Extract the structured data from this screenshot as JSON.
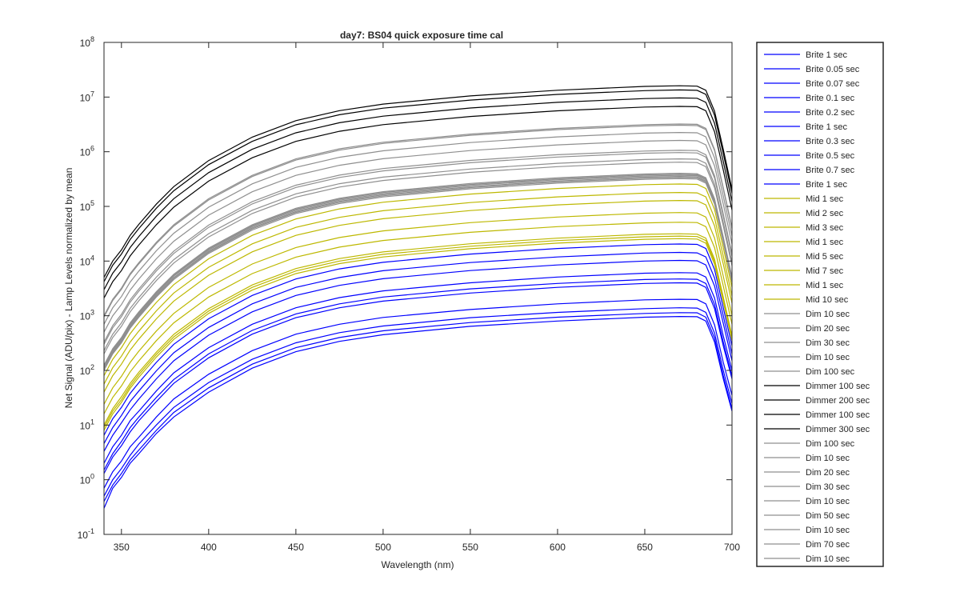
{
  "chart_data": {
    "type": "line",
    "title": "day7: BS04  quick exposure time cal",
    "xlabel": "Wavelength (nm)",
    "ylabel": "Net Signal (ADU/pix) - Lamp Levels normalized by mean",
    "xlim": [
      340,
      700
    ],
    "ylim": [
      0.1,
      100000000
    ],
    "yscale": "log",
    "xticks": [
      350,
      400,
      450,
      500,
      550,
      600,
      650,
      700
    ],
    "yticks": [
      {
        "value": 0.1,
        "base": "10",
        "exp": "-1"
      },
      {
        "value": 1,
        "base": "10",
        "exp": "0"
      },
      {
        "value": 10,
        "base": "10",
        "exp": "1"
      },
      {
        "value": 100,
        "base": "10",
        "exp": "2"
      },
      {
        "value": 1000,
        "base": "10",
        "exp": "3"
      },
      {
        "value": 10000,
        "base": "10",
        "exp": "4"
      },
      {
        "value": 100000,
        "base": "10",
        "exp": "5"
      },
      {
        "value": 1000000,
        "base": "10",
        "exp": "6"
      },
      {
        "value": 10000000,
        "base": "10",
        "exp": "7"
      },
      {
        "value": 100000000,
        "base": "10",
        "exp": "8"
      }
    ],
    "grid": false,
    "legend_position": "outside-right",
    "x": [
      340,
      345,
      350,
      355,
      360,
      370,
      380,
      400,
      425,
      450,
      475,
      500,
      550,
      600,
      650,
      670,
      680,
      685,
      690,
      695,
      700
    ],
    "colors": {
      "Brite": "#0000ff",
      "Mid": "#bdb800",
      "Dim": "#8f8f8f",
      "Dimmer": "#000000"
    },
    "series": [
      {
        "name": "Brite 1 sec",
        "group": "Brite",
        "values": [
          0.3,
          0.7,
          1.1,
          2,
          3,
          7,
          14,
          40,
          110,
          220,
          340,
          450,
          640,
          800,
          940,
          970,
          960,
          800,
          330,
          70,
          18
        ]
      },
      {
        "name": "Brite 0.05 sec",
        "group": "Brite",
        "values": [
          0.4,
          0.8,
          1.3,
          2.3,
          3.5,
          8,
          17,
          48,
          130,
          260,
          400,
          530,
          750,
          940,
          1100,
          1140,
          1130,
          940,
          390,
          80,
          20
        ]
      },
      {
        "name": "Brite 0.07 sec",
        "group": "Brite",
        "values": [
          0.5,
          1,
          1.6,
          2.8,
          4.5,
          10,
          21,
          60,
          160,
          320,
          490,
          650,
          920,
          1150,
          1350,
          1400,
          1380,
          1150,
          480,
          100,
          25
        ]
      },
      {
        "name": "Brite 0.1 sec",
        "group": "Brite",
        "values": [
          0.7,
          1.4,
          2.2,
          4,
          6,
          14,
          30,
          85,
          230,
          460,
          700,
          930,
          1300,
          1650,
          1950,
          2000,
          1980,
          1650,
          680,
          140,
          35
        ]
      },
      {
        "name": "Brite 0.2 sec",
        "group": "Brite",
        "values": [
          1.3,
          2.6,
          4.2,
          7.5,
          12,
          27,
          58,
          170,
          460,
          920,
          1400,
          1850,
          2600,
          3300,
          3900,
          4000,
          3950,
          3300,
          1350,
          280,
          70
        ]
      },
      {
        "name": "Brite 1 sec",
        "group": "Brite",
        "values": [
          1.5,
          3,
          5,
          9,
          14,
          32,
          68,
          200,
          540,
          1080,
          1650,
          2200,
          3100,
          3900,
          4600,
          4700,
          4650,
          3900,
          1600,
          330,
          80
        ]
      },
      {
        "name": "Brite 0.3 sec",
        "group": "Brite",
        "values": [
          2,
          4,
          6.5,
          12,
          18,
          42,
          90,
          260,
          700,
          1400,
          2150,
          2850,
          4000,
          5100,
          6000,
          6150,
          6050,
          5100,
          2100,
          430,
          100
        ]
      },
      {
        "name": "Brite 0.5 sec",
        "group": "Brite",
        "values": [
          3.3,
          6.5,
          11,
          19,
          30,
          70,
          150,
          440,
          1180,
          2350,
          3600,
          4750,
          6700,
          8500,
          10000,
          10300,
          10100,
          8500,
          3500,
          720,
          150
        ]
      },
      {
        "name": "Brite 0.7 sec",
        "group": "Brite",
        "values": [
          4.6,
          9,
          15,
          27,
          42,
          98,
          210,
          610,
          1650,
          3300,
          5000,
          6650,
          9400,
          11900,
          14000,
          14400,
          14100,
          11900,
          4900,
          1000,
          200
        ]
      },
      {
        "name": "Brite 1 sec",
        "group": "Brite",
        "values": [
          6.5,
          13,
          21,
          38,
          60,
          140,
          300,
          880,
          2350,
          4700,
          7200,
          9500,
          13400,
          17000,
          20000,
          20500,
          20200,
          17000,
          7000,
          1400,
          280
        ]
      },
      {
        "name": "Mid 1 sec",
        "group": "Mid",
        "values": [
          8,
          16,
          26,
          47,
          75,
          175,
          370,
          1100,
          2950,
          5900,
          9000,
          11900,
          16800,
          21300,
          25000,
          25700,
          25300,
          21300,
          8800,
          1800,
          350
        ]
      },
      {
        "name": "Mid 2 sec",
        "group": "Mid",
        "values": [
          16,
          32,
          52,
          94,
          150,
          350,
          740,
          2200,
          5900,
          11800,
          18000,
          23800,
          33600,
          42600,
          50000,
          51400,
          50600,
          42600,
          17600,
          3500,
          700
        ]
      },
      {
        "name": "Mid 3 sec",
        "group": "Mid",
        "values": [
          24,
          48,
          78,
          140,
          225,
          525,
          1100,
          3300,
          8850,
          17700,
          27000,
          35700,
          50400,
          63900,
          75000,
          77100,
          75900,
          63900,
          26400,
          5300,
          1000
        ]
      },
      {
        "name": "Mid 1 sec",
        "group": "Mid",
        "values": [
          9,
          18,
          29,
          52,
          84,
          195,
          410,
          1220,
          3300,
          6600,
          10000,
          13300,
          18700,
          23700,
          27800,
          28600,
          28100,
          23700,
          9800,
          2000,
          390
        ]
      },
      {
        "name": "Mid 5 sec",
        "group": "Mid",
        "values": [
          40,
          80,
          130,
          235,
          375,
          875,
          1850,
          5500,
          14750,
          29500,
          45000,
          59500,
          84000,
          106500,
          125000,
          128500,
          126500,
          106500,
          44000,
          8800,
          1700
        ]
      },
      {
        "name": "Mid 7 sec",
        "group": "Mid",
        "values": [
          56,
          112,
          182,
          330,
          525,
          1225,
          2600,
          7700,
          20650,
          41300,
          63000,
          83300,
          117600,
          149100,
          175000,
          180000,
          177000,
          149100,
          61600,
          12300,
          2300
        ]
      },
      {
        "name": "Mid 1 sec",
        "group": "Mid",
        "values": [
          10,
          20,
          33,
          58,
          93,
          215,
          455,
          1350,
          3650,
          7300,
          11100,
          14700,
          20700,
          26200,
          30800,
          31600,
          31100,
          26200,
          10800,
          2200,
          430
        ]
      },
      {
        "name": "Mid 10 sec",
        "group": "Mid",
        "values": [
          80,
          160,
          260,
          470,
          750,
          1750,
          3700,
          11000,
          29500,
          59000,
          90000,
          119000,
          168000,
          213000,
          250000,
          257000,
          253000,
          213000,
          88000,
          17600,
          3300
        ]
      },
      {
        "name": "Dim 10 sec",
        "group": "Dim",
        "values": [
          100,
          200,
          320,
          590,
          940,
          2200,
          4600,
          13800,
          37000,
          74000,
          113000,
          149000,
          210000,
          267000,
          313000,
          322000,
          317000,
          267000,
          110000,
          22000,
          4100
        ]
      },
      {
        "name": "Dim 20 sec",
        "group": "Dim",
        "values": [
          200,
          400,
          640,
          1180,
          1880,
          4400,
          9200,
          27600,
          74000,
          148000,
          226000,
          298000,
          420000,
          534000,
          626000,
          644000,
          634000,
          534000,
          220000,
          44000,
          8200
        ]
      },
      {
        "name": "Dim 30 sec",
        "group": "Dim",
        "values": [
          300,
          600,
          960,
          1770,
          2820,
          6600,
          13800,
          41400,
          111000,
          222000,
          339000,
          447000,
          630000,
          801000,
          939000,
          966000,
          951000,
          801000,
          330000,
          66000,
          12300
        ]
      },
      {
        "name": "Dim 10 sec",
        "group": "Dim",
        "values": [
          110,
          220,
          350,
          650,
          1030,
          2400,
          5000,
          15100,
          40500,
          81000,
          124000,
          163000,
          230000,
          292000,
          343000,
          353000,
          347000,
          292000,
          120000,
          24000,
          4500
        ]
      },
      {
        "name": "Dim 100 sec",
        "group": "Dim",
        "values": [
          1000,
          2000,
          3200,
          5900,
          9400,
          22000,
          46000,
          138000,
          370000,
          740000,
          1130000,
          1490000,
          2100000,
          2670000,
          3130000,
          3220000,
          3170000,
          2670000,
          1100000,
          220000,
          41000
        ]
      },
      {
        "name": "Dimmer 100 sec",
        "group": "Dimmer",
        "values": [
          3000,
          6000,
          9600,
          17700,
          28200,
          66000,
          138000,
          414000,
          1110000,
          2220000,
          3390000,
          4470000,
          6300000,
          8010000,
          9390000,
          9660000,
          9510000,
          8010000,
          3300000,
          660000,
          123000
        ]
      },
      {
        "name": "Dimmer 200 sec",
        "group": "Dimmer",
        "values": [
          4200,
          8400,
          13400,
          24800,
          39500,
          92400,
          193000,
          580000,
          1550000,
          3110000,
          4750000,
          6260000,
          8820000,
          11200000,
          13100000,
          13500000,
          13300000,
          11200000,
          4620000,
          924000,
          172000
        ]
      },
      {
        "name": "Dimmer 100 sec",
        "group": "Dimmer",
        "values": [
          2100,
          4200,
          6700,
          12400,
          19700,
          46200,
          96600,
          290000,
          777000,
          1550000,
          2370000,
          3130000,
          4410000,
          5610000,
          6570000,
          6760000,
          6660000,
          5610000,
          2310000,
          462000,
          86000
        ]
      },
      {
        "name": "Dimmer 300 sec",
        "group": "Dimmer",
        "values": [
          5000,
          10000,
          16000,
          29500,
          47000,
          110000,
          230000,
          690000,
          1850000,
          3700000,
          5650000,
          7450000,
          10500000,
          13350000,
          15650000,
          16100000,
          15850000,
          13350000,
          5500000,
          1100000,
          205000
        ]
      },
      {
        "name": "Dim 100 sec",
        "group": "Dim",
        "values": [
          950,
          1900,
          3040,
          5600,
          8900,
          20900,
          43700,
          131000,
          352000,
          703000,
          1070000,
          1420000,
          2000000,
          2540000,
          2970000,
          3060000,
          3010000,
          2540000,
          1050000,
          209000,
          39000
        ]
      },
      {
        "name": "Dim 10 sec",
        "group": "Dim",
        "values": [
          120,
          240,
          380,
          710,
          1130,
          2640,
          5500,
          16600,
          44400,
          88800,
          136000,
          179000,
          252000,
          320000,
          376000,
          386000,
          380000,
          320000,
          132000,
          26400,
          4900
        ]
      },
      {
        "name": "Dim 20 sec",
        "group": "Dim",
        "values": [
          230,
          460,
          740,
          1360,
          2160,
          5060,
          10600,
          31700,
          85100,
          170000,
          260000,
          343000,
          483000,
          614000,
          720000,
          741000,
          729000,
          614000,
          253000,
          50600,
          9400
        ]
      },
      {
        "name": "Dim 30 sec",
        "group": "Dim",
        "values": [
          330,
          660,
          1060,
          1950,
          3100,
          7260,
          15200,
          45500,
          122000,
          244000,
          373000,
          492000,
          693000,
          881000,
          1030000,
          1060000,
          1050000,
          881000,
          363000,
          72600,
          13500
        ]
      },
      {
        "name": "Dim 10 sec",
        "group": "Dim",
        "values": [
          105,
          210,
          336,
          620,
          990,
          2310,
          4830,
          14500,
          38900,
          77700,
          119000,
          156000,
          221000,
          280000,
          329000,
          338000,
          333000,
          280000,
          116000,
          23100,
          4300
        ]
      },
      {
        "name": "Dim 50 sec",
        "group": "Dim",
        "values": [
          500,
          1000,
          1600,
          2950,
          4700,
          11000,
          23000,
          69000,
          185000,
          370000,
          565000,
          745000,
          1050000,
          1335000,
          1565000,
          1610000,
          1585000,
          1335000,
          550000,
          110000,
          20500
        ]
      },
      {
        "name": "Dim 10 sec",
        "group": "Dim",
        "values": [
          115,
          230,
          368,
          680,
          1080,
          2530,
          5300,
          15900,
          42600,
          85100,
          130000,
          171000,
          242000,
          307000,
          360000,
          370000,
          365000,
          307000,
          127000,
          25300,
          4700
        ]
      },
      {
        "name": "Dim 70 sec",
        "group": "Dim",
        "values": [
          700,
          1400,
          2240,
          4130,
          6580,
          15400,
          32200,
          96600,
          259000,
          518000,
          791000,
          1040000,
          1470000,
          1870000,
          2190000,
          2250000,
          2220000,
          1870000,
          770000,
          154000,
          28700
        ]
      },
      {
        "name": "Dim 10 sec",
        "group": "Dim",
        "values": [
          125,
          250,
          400,
          740,
          1180,
          2750,
          5750,
          17300,
          46300,
          92500,
          141000,
          186000,
          263000,
          334000,
          391000,
          403000,
          396000,
          334000,
          138000,
          27500,
          5100
        ]
      }
    ]
  }
}
